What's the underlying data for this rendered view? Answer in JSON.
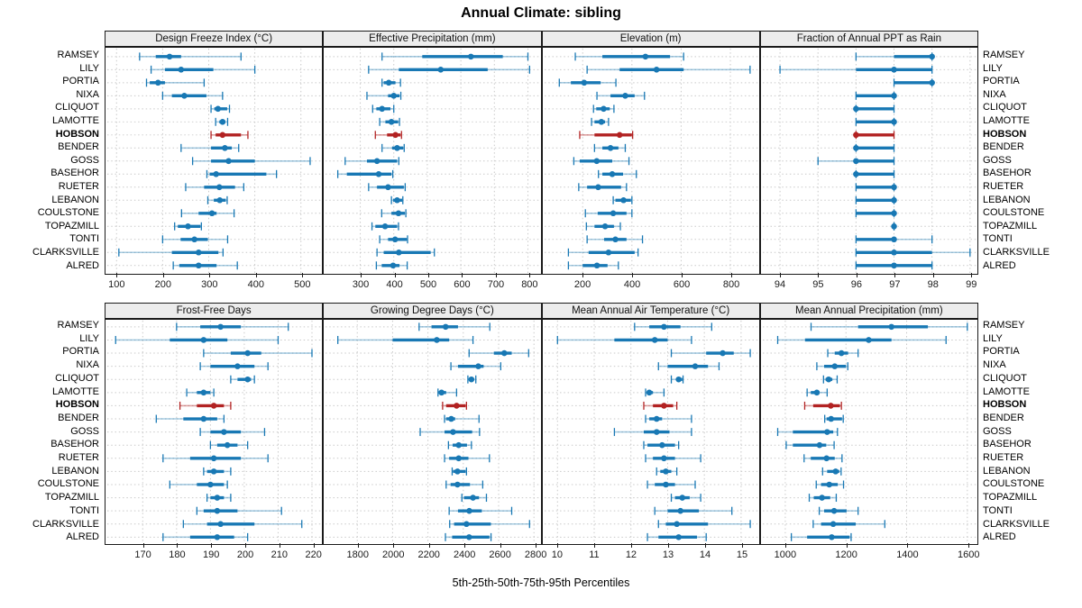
{
  "title": "Annual Climate: sibling",
  "caption": "5th-25th-50th-75th-95th Percentiles",
  "highlight_category": "HOBSON",
  "colors": {
    "series": "#1878b4",
    "series_light": "rgba(24,120,180,0.38)",
    "highlight": "#b22222",
    "highlight_light": "rgba(178,34,34,0.42)",
    "strip_bg": "#ececec",
    "grid": "#c9c9c9",
    "border": "#1a1a1a"
  },
  "categories": [
    "RAMSEY",
    "LILY",
    "PORTIA",
    "NIXA",
    "CLIQUOT",
    "LAMOTTE",
    "HOBSON",
    "BENDER",
    "GOSS",
    "BASEHOR",
    "RUETER",
    "LEBANON",
    "COULSTONE",
    "TOPAZMILL",
    "TONTI",
    "CLARKSVILLE",
    "ALRED"
  ],
  "chart_data": [
    {
      "type": "dotplot-percentiles",
      "title": "Design Freeze Index (°C)",
      "percentiles": [
        5,
        25,
        50,
        75,
        95
      ],
      "xlim": [
        76,
        546
      ],
      "ticks": [
        100,
        200,
        300,
        400,
        500
      ],
      "rows": [
        [
          150,
          185,
          215,
          240,
          370
        ],
        [
          175,
          205,
          240,
          310,
          400
        ],
        [
          165,
          172,
          190,
          205,
          290
        ],
        [
          200,
          220,
          247,
          295,
          330
        ],
        [
          305,
          312,
          320,
          340,
          345
        ],
        [
          315,
          323,
          330,
          336,
          341
        ],
        [
          305,
          315,
          330,
          370,
          385
        ],
        [
          240,
          305,
          335,
          350,
          365
        ],
        [
          265,
          305,
          343,
          400,
          520
        ],
        [
          296,
          302,
          316,
          425,
          447
        ],
        [
          250,
          290,
          323,
          357,
          376
        ],
        [
          298,
          311,
          324,
          337,
          340
        ],
        [
          241,
          278,
          307,
          317,
          355
        ],
        [
          226,
          233,
          255,
          282,
          284
        ],
        [
          200,
          239,
          269,
          298,
          341
        ],
        [
          105,
          220,
          278,
          321,
          331
        ],
        [
          223,
          236,
          278,
          317,
          362
        ]
      ]
    },
    {
      "type": "dotplot-percentiles",
      "title": "Effective Precipitation (mm)",
      "percentiles": [
        5,
        25,
        50,
        75,
        95
      ],
      "xlim": [
        191,
        837
      ],
      "ticks": [
        300,
        400,
        500,
        600,
        700,
        800
      ],
      "rows": [
        [
          365,
          485,
          630,
          725,
          800
        ],
        [
          325,
          415,
          540,
          680,
          805
        ],
        [
          365,
          370,
          385,
          405,
          420
        ],
        [
          320,
          383,
          400,
          417,
          421
        ],
        [
          337,
          348,
          365,
          390,
          400
        ],
        [
          358,
          375,
          393,
          413,
          417
        ],
        [
          345,
          380,
          405,
          420,
          423
        ],
        [
          365,
          395,
          410,
          428,
          431
        ],
        [
          255,
          320,
          350,
          410,
          415
        ],
        [
          233,
          260,
          355,
          393,
          397
        ],
        [
          325,
          350,
          383,
          430,
          434
        ],
        [
          393,
          398,
          410,
          425,
          427
        ],
        [
          364,
          393,
          414,
          433,
          436
        ],
        [
          335,
          345,
          374,
          410,
          414
        ],
        [
          358,
          383,
          404,
          439,
          441
        ],
        [
          350,
          370,
          415,
          510,
          521
        ],
        [
          348,
          364,
          398,
          417,
          440
        ]
      ]
    },
    {
      "type": "dotplot-percentiles",
      "title": "Elevation (m)",
      "percentiles": [
        5,
        25,
        50,
        75,
        95
      ],
      "xlim": [
        38,
        918
      ],
      "ticks": [
        200,
        400,
        600,
        800
      ],
      "rows": [
        [
          170,
          280,
          455,
          555,
          610
        ],
        [
          218,
          350,
          500,
          610,
          880
        ],
        [
          105,
          152,
          206,
          273,
          335
        ],
        [
          258,
          313,
          373,
          411,
          451
        ],
        [
          244,
          255,
          285,
          310,
          327
        ],
        [
          236,
          248,
          276,
          291,
          305
        ],
        [
          188,
          248,
          350,
          400,
          403
        ],
        [
          248,
          280,
          313,
          345,
          373
        ],
        [
          164,
          188,
          257,
          320,
          388
        ],
        [
          264,
          280,
          320,
          364,
          418
        ],
        [
          184,
          218,
          263,
          356,
          378
        ],
        [
          324,
          333,
          366,
          396,
          400
        ],
        [
          211,
          261,
          324,
          378,
          400
        ],
        [
          215,
          248,
          291,
          327,
          353
        ],
        [
          218,
          287,
          333,
          378,
          443
        ],
        [
          142,
          224,
          305,
          411,
          425
        ],
        [
          142,
          200,
          258,
          301,
          345
        ]
      ]
    },
    {
      "type": "dotplot-percentiles",
      "title": "Fraction of Annual PPT as Rain",
      "percentiles": [
        5,
        25,
        50,
        75,
        95
      ],
      "xlim": [
        93.5,
        99.2
      ],
      "ticks": [
        94,
        95,
        96,
        97,
        98,
        99
      ],
      "rows": [
        [
          96,
          97,
          98,
          98,
          98
        ],
        [
          94,
          96,
          97,
          98,
          98
        ],
        [
          97,
          97,
          98,
          98,
          98
        ],
        [
          96,
          96,
          97,
          97,
          97
        ],
        [
          96,
          96,
          96,
          97,
          97
        ],
        [
          96,
          96,
          97,
          97,
          97
        ],
        [
          96,
          96,
          96,
          97,
          97
        ],
        [
          96,
          96,
          96,
          97,
          97
        ],
        [
          95,
          96,
          96,
          97,
          97
        ],
        [
          96,
          96,
          96,
          97,
          97
        ],
        [
          96,
          96,
          97,
          97,
          97
        ],
        [
          96,
          96,
          97,
          97,
          97
        ],
        [
          96,
          96,
          97,
          97,
          97
        ],
        [
          97,
          97,
          97,
          97,
          97
        ],
        [
          96,
          96,
          97,
          97,
          98
        ],
        [
          96,
          96,
          97,
          98,
          99
        ],
        [
          96,
          96,
          97,
          98,
          98
        ]
      ]
    },
    {
      "type": "dotplot-percentiles",
      "title": "Frost-Free Days",
      "percentiles": [
        5,
        25,
        50,
        75,
        95
      ],
      "xlim": [
        159,
        223
      ],
      "ticks": [
        170,
        180,
        190,
        200,
        210,
        220
      ],
      "rows": [
        [
          180,
          187,
          193,
          199,
          213
        ],
        [
          162,
          178,
          188,
          195,
          210
        ],
        [
          188,
          196,
          201,
          205,
          220
        ],
        [
          187,
          190,
          198,
          203,
          207
        ],
        [
          196,
          198,
          201,
          202,
          203
        ],
        [
          183,
          186,
          188,
          190,
          191
        ],
        [
          181,
          186,
          191,
          194,
          196
        ],
        [
          174,
          182,
          188,
          192,
          194
        ],
        [
          187,
          190,
          194,
          199,
          206
        ],
        [
          190,
          192,
          195,
          198,
          201
        ],
        [
          176,
          184,
          191,
          199,
          207
        ],
        [
          188,
          189,
          191,
          194,
          196
        ],
        [
          178,
          186,
          190,
          194,
          195
        ],
        [
          189,
          190,
          192,
          194,
          196
        ],
        [
          186,
          188,
          192,
          198,
          211
        ],
        [
          182,
          189,
          193,
          203,
          217
        ],
        [
          176,
          184,
          192,
          197,
          201
        ]
      ]
    },
    {
      "type": "dotplot-percentiles",
      "title": "Growing Degree Days (°C)",
      "percentiles": [
        5,
        25,
        50,
        75,
        95
      ],
      "xlim": [
        1610,
        2836
      ],
      "ticks": [
        1800,
        2000,
        2200,
        2400,
        2600,
        2800
      ],
      "rows": [
        [
          2150,
          2220,
          2300,
          2370,
          2550
        ],
        [
          1690,
          2000,
          2250,
          2320,
          2455
        ],
        [
          2433,
          2573,
          2632,
          2674,
          2770
        ],
        [
          2330,
          2370,
          2485,
          2515,
          2612
        ],
        [
          2426,
          2437,
          2446,
          2460,
          2471
        ],
        [
          2257,
          2261,
          2277,
          2303,
          2362
        ],
        [
          2283,
          2303,
          2362,
          2413,
          2418
        ],
        [
          2294,
          2303,
          2332,
          2354,
          2489
        ],
        [
          2156,
          2294,
          2342,
          2450,
          2492
        ],
        [
          2316,
          2340,
          2374,
          2421,
          2446
        ],
        [
          2294,
          2320,
          2374,
          2429,
          2548
        ],
        [
          2337,
          2342,
          2367,
          2413,
          2418
        ],
        [
          2303,
          2328,
          2367,
          2438,
          2510
        ],
        [
          2392,
          2404,
          2455,
          2489,
          2531
        ],
        [
          2320,
          2370,
          2434,
          2505,
          2674
        ],
        [
          2323,
          2348,
          2418,
          2556,
          2775
        ],
        [
          2299,
          2337,
          2433,
          2548,
          2557
        ]
      ]
    },
    {
      "type": "dotplot-percentiles",
      "title": "Mean Annual Air Temperature (°C)",
      "percentiles": [
        5,
        25,
        50,
        75,
        95
      ],
      "xlim": [
        9.6,
        15.5
      ],
      "ticks": [
        10,
        11,
        12,
        13,
        14,
        15
      ],
      "rows": [
        [
          12.1,
          12.5,
          12.9,
          13.35,
          14.2
        ],
        [
          10.0,
          11.55,
          12.65,
          13.0,
          13.65
        ],
        [
          13.1,
          14.05,
          14.5,
          14.8,
          15.25
        ],
        [
          12.75,
          13.0,
          13.75,
          14.1,
          14.4
        ],
        [
          13.1,
          13.25,
          13.3,
          13.4,
          13.42
        ],
        [
          12.4,
          12.45,
          12.5,
          12.6,
          12.9
        ],
        [
          12.35,
          12.6,
          12.9,
          13.15,
          13.25
        ],
        [
          12.4,
          12.5,
          12.7,
          12.85,
          13.65
        ],
        [
          11.55,
          12.35,
          12.7,
          13.05,
          13.65
        ],
        [
          12.35,
          12.45,
          12.85,
          13.2,
          13.3
        ],
        [
          12.4,
          12.6,
          12.9,
          13.2,
          13.9
        ],
        [
          12.7,
          12.8,
          12.95,
          13.1,
          13.25
        ],
        [
          12.45,
          12.65,
          12.95,
          13.2,
          13.75
        ],
        [
          13.1,
          13.2,
          13.4,
          13.6,
          13.9
        ],
        [
          12.65,
          13.0,
          13.35,
          13.85,
          14.75
        ],
        [
          12.75,
          12.95,
          13.25,
          14.1,
          15.25
        ],
        [
          12.45,
          12.75,
          13.3,
          13.8,
          14.05
        ]
      ]
    },
    {
      "type": "dotplot-percentiles",
      "title": "Mean Annual Precipitation (mm)",
      "percentiles": [
        5,
        25,
        50,
        75,
        95
      ],
      "xlim": [
        920,
        1634
      ],
      "ticks": [
        1000,
        1200,
        1400,
        1600
      ],
      "rows": [
        [
          1085,
          1240,
          1350,
          1470,
          1600
        ],
        [
          975,
          1065,
          1275,
          1350,
          1530
        ],
        [
          1140,
          1163,
          1185,
          1207,
          1240
        ],
        [
          1104,
          1128,
          1163,
          1200,
          1206
        ],
        [
          1126,
          1133,
          1143,
          1155,
          1171
        ],
        [
          1072,
          1084,
          1104,
          1113,
          1138
        ],
        [
          1064,
          1092,
          1150,
          1180,
          1185
        ],
        [
          1130,
          1136,
          1151,
          1187,
          1191
        ],
        [
          975,
          1025,
          1138,
          1158,
          1172
        ],
        [
          1003,
          1025,
          1113,
          1135,
          1161
        ],
        [
          1062,
          1084,
          1136,
          1163,
          1187
        ],
        [
          1123,
          1138,
          1166,
          1178,
          1184
        ],
        [
          1102,
          1118,
          1145,
          1173,
          1192
        ],
        [
          1079,
          1094,
          1121,
          1148,
          1168
        ],
        [
          1112,
          1128,
          1161,
          1202,
          1240
        ],
        [
          1092,
          1118,
          1158,
          1232,
          1328
        ],
        [
          1020,
          1072,
          1153,
          1212,
          1217
        ]
      ]
    }
  ]
}
